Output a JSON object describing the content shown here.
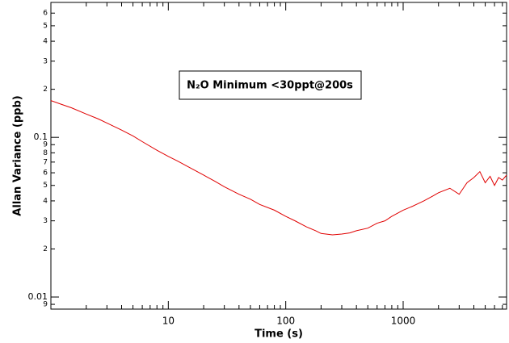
{
  "chart_data": {
    "type": "line",
    "xlabel": "Time (s)",
    "ylabel": "Allan Variance (ppb)",
    "annotation": "N₂O Minimum <30ppt@200s",
    "xlog": true,
    "ylog": true,
    "color": "#e00000",
    "xlim": [
      1,
      7600
    ],
    "ylim": [
      0.0084,
      0.7
    ],
    "xticks": [
      10,
      100,
      1000
    ],
    "xminorticks": [
      2,
      3,
      4,
      5,
      6,
      7,
      8,
      9,
      20,
      30,
      40,
      50,
      60,
      70,
      80,
      90,
      200,
      300,
      400,
      500,
      600,
      700,
      800,
      900,
      2000,
      3000,
      4000,
      5000,
      6000,
      7000
    ],
    "yticks": [
      {
        "value": 0.009,
        "label": "9"
      },
      0.01,
      {
        "value": 0.02,
        "label": "2"
      },
      {
        "value": 0.03,
        "label": "3"
      },
      {
        "value": 0.04,
        "label": "4"
      },
      {
        "value": 0.05,
        "label": "5"
      },
      {
        "value": 0.06,
        "label": "6"
      },
      {
        "value": 0.07,
        "label": "7"
      },
      {
        "value": 0.08,
        "label": "8"
      },
      {
        "value": 0.09,
        "label": "9"
      },
      0.1,
      {
        "value": 0.2,
        "label": "2"
      },
      {
        "value": 0.3,
        "label": "3"
      },
      {
        "value": 0.4,
        "label": "4"
      },
      {
        "value": 0.5,
        "label": "5"
      },
      {
        "value": 0.6,
        "label": "6"
      }
    ],
    "x": [
      1,
      1.2,
      1.5,
      2,
      2.5,
      3,
      4,
      5,
      6,
      8,
      10,
      12,
      15,
      20,
      25,
      30,
      40,
      50,
      60,
      80,
      100,
      120,
      150,
      180,
      200,
      250,
      300,
      350,
      400,
      500,
      600,
      700,
      800,
      1000,
      1200,
      1500,
      1800,
      2000,
      2500,
      3000,
      3500,
      4000,
      4500,
      5000,
      5500,
      6000,
      6500,
      7000,
      7600
    ],
    "values": [
      0.17,
      0.162,
      0.153,
      0.14,
      0.131,
      0.123,
      0.111,
      0.102,
      0.094,
      0.083,
      0.076,
      0.071,
      0.065,
      0.058,
      0.053,
      0.049,
      0.044,
      0.041,
      0.038,
      0.035,
      0.032,
      0.03,
      0.0275,
      0.026,
      0.025,
      0.0245,
      0.0248,
      0.0252,
      0.026,
      0.027,
      0.029,
      0.03,
      0.032,
      0.035,
      0.037,
      0.04,
      0.043,
      0.045,
      0.048,
      0.044,
      0.052,
      0.056,
      0.061,
      0.052,
      0.057,
      0.05,
      0.056,
      0.054,
      0.058
    ]
  }
}
